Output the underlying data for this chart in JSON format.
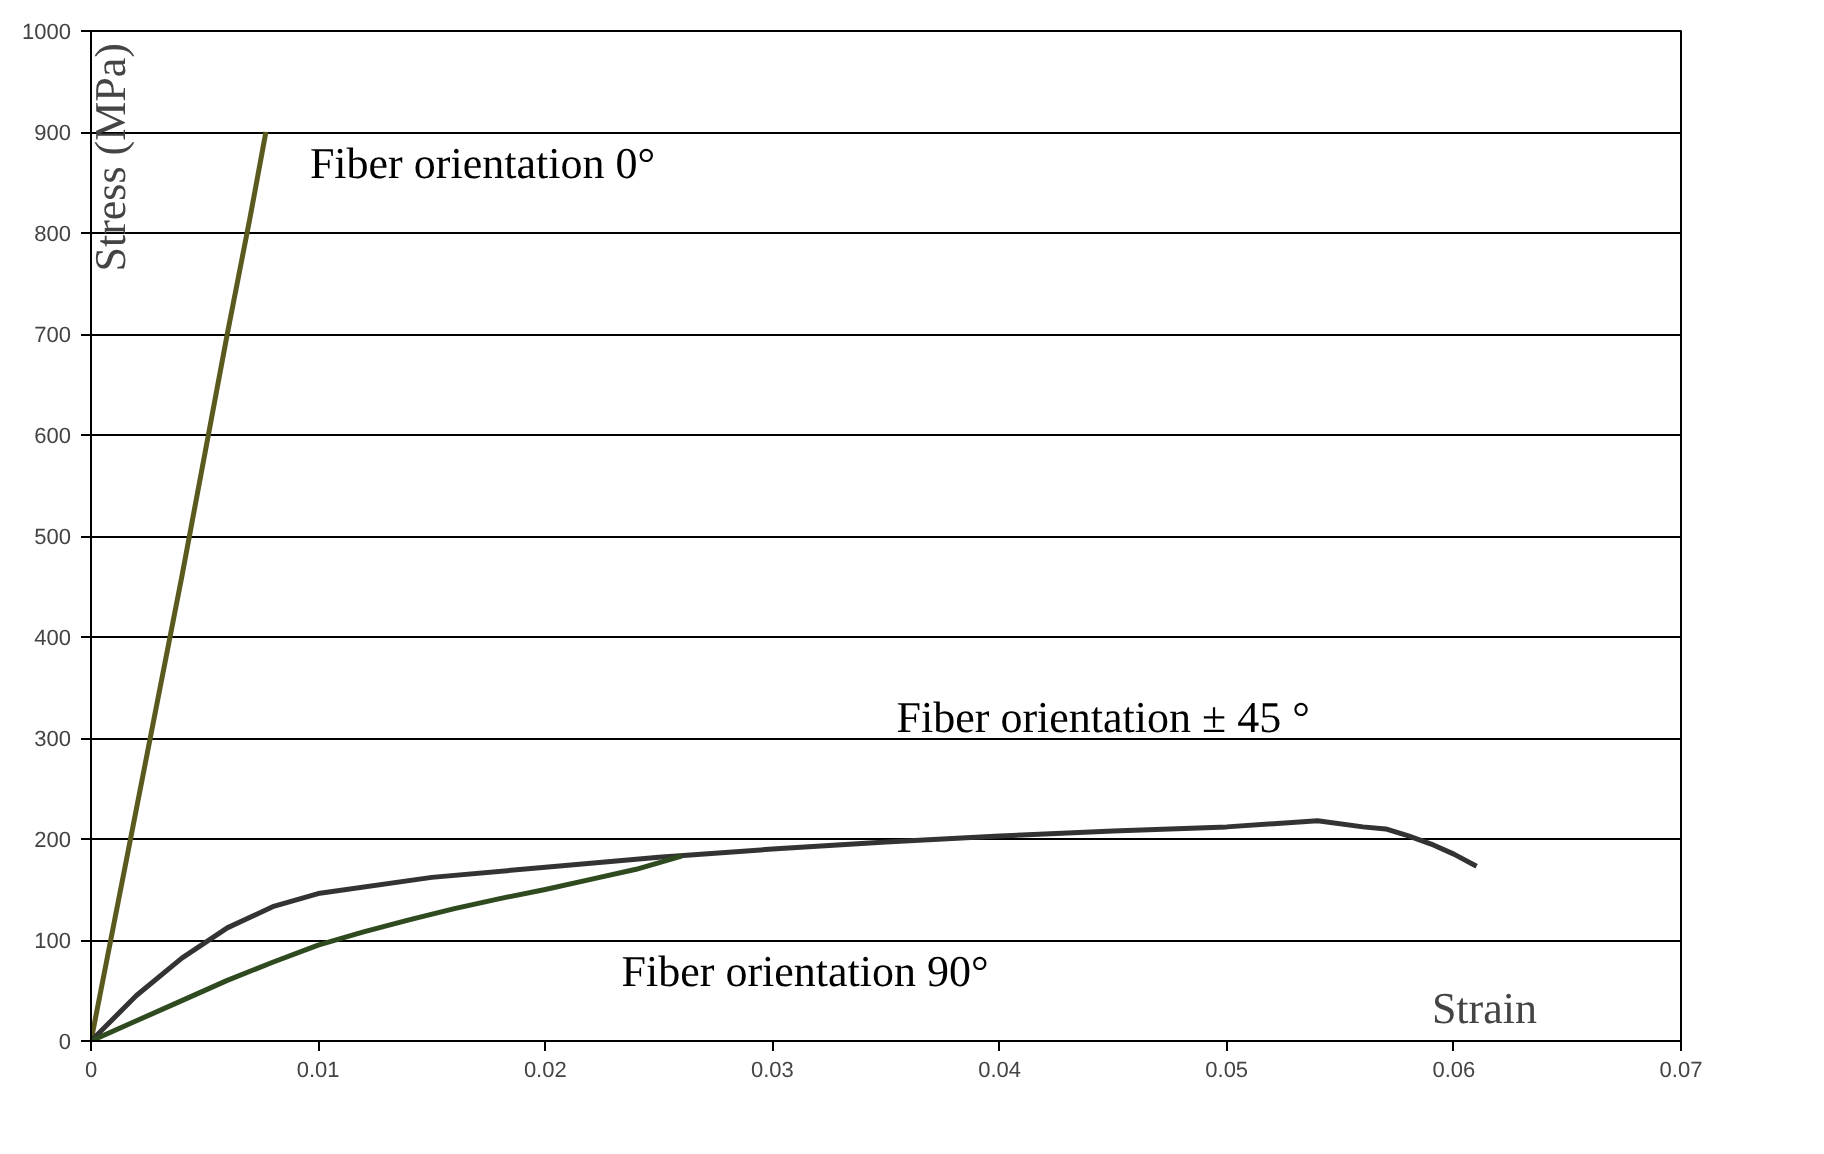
{
  "chart_data": {
    "type": "line",
    "xlabel": "Strain",
    "ylabel": "Stress (MPa)",
    "xlim": [
      0,
      0.07
    ],
    "ylim": [
      0,
      1000
    ],
    "xticks": [
      0,
      0.01,
      0.02,
      0.03,
      0.04,
      0.05,
      0.06,
      0.07
    ],
    "yticks": [
      0,
      100,
      200,
      300,
      400,
      500,
      600,
      700,
      800,
      900,
      1000
    ],
    "grid": "y",
    "line_style": "solid",
    "series": [
      {
        "name": "Fiber orientation 0°",
        "color": "#5a5a1e",
        "x": [
          0,
          0.001,
          0.002,
          0.003,
          0.004,
          0.005,
          0.006,
          0.007,
          0.0077
        ],
        "values": [
          0,
          115,
          230,
          345,
          460,
          580,
          700,
          815,
          900
        ]
      },
      {
        "name": "Fiber orientation   ±  45  °",
        "color": "#333333",
        "x": [
          0,
          0.002,
          0.004,
          0.006,
          0.008,
          0.01,
          0.015,
          0.02,
          0.025,
          0.03,
          0.035,
          0.04,
          0.045,
          0.05,
          0.054,
          0.056,
          0.057,
          0.058,
          0.059,
          0.06,
          0.061
        ],
        "values": [
          0,
          45,
          82,
          112,
          133,
          146,
          162,
          172,
          182,
          190,
          197,
          203,
          208,
          212,
          218,
          212,
          210,
          203,
          195,
          185,
          173
        ]
      },
      {
        "name": "Fiber orientation 90°",
        "color": "#2e4a1e",
        "x": [
          0,
          0.002,
          0.004,
          0.006,
          0.008,
          0.01,
          0.012,
          0.014,
          0.016,
          0.018,
          0.02,
          0.022,
          0.024,
          0.026
        ],
        "values": [
          0,
          20,
          40,
          60,
          78,
          95,
          108,
          120,
          131,
          141,
          150,
          160,
          170,
          183
        ]
      }
    ]
  }
}
